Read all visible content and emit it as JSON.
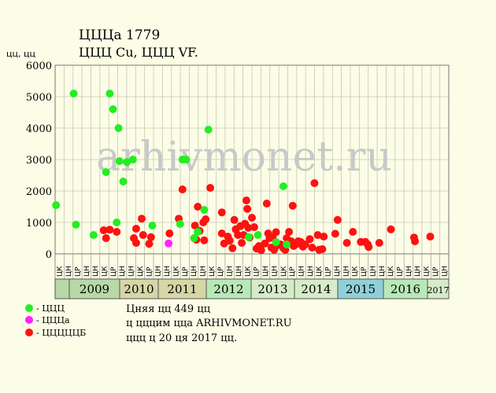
{
  "header": {
    "title": "ЦЦЦа 1779",
    "subtitle": "ЦЦЦ Cu, ЦЦЦ VF."
  },
  "watermark": "arhivmonet.ru",
  "footer": {
    "line1": "Цняя цц 449 цц",
    "line2": "ц цццим цца ARHIVMONET.RU",
    "line3": "ццц ц 20 ця 2017 цц."
  },
  "legend": [
    {
      "label": "- ЦЦЦ",
      "color": "#22ee22",
      "icon": "green-dot-icon"
    },
    {
      "label": "- ЦЦЦа",
      "color": "#ff22ff",
      "icon": "magenta-dot-icon"
    },
    {
      "label": "- ЦЦЦЦЦБ",
      "color": "#ff1111",
      "icon": "red-dot-icon"
    }
  ],
  "chart_data": {
    "type": "scatter",
    "title": "ЦЦЦа 1779",
    "subtitle": "ЦЦЦ Cu, ЦЦЦ VF.",
    "ylabel": "цц, цц",
    "ylim": [
      0,
      6000
    ],
    "yticks": [
      0,
      1000,
      2000,
      3000,
      4000,
      5000,
      6000
    ],
    "xlim": [
      2008.75,
      2017.25
    ],
    "grid": true,
    "legend_position": "bottom-left",
    "years": [
      "",
      "2009",
      "2010",
      "2011",
      "2012",
      "2013",
      "2014",
      "2015",
      "2016",
      "2017"
    ],
    "year_colors": [
      "#b8d8a8",
      "#b8d8a8",
      "#d6d6a6",
      "#d6d6a6",
      "#b8e8b8",
      "#d6ecc8",
      "#d6ecc8",
      "#8fd0d8",
      "#b8e8b8",
      "#d6ecc8"
    ],
    "months": [
      "ЦК",
      "ЦН",
      "ЦР",
      "ЦН",
      "ЦН",
      "ЦК",
      "ЦР",
      "ЦН",
      "ЦН",
      "ЦК",
      "ЦР",
      "ЦН",
      "ЦН",
      "ЦК",
      "ЦР",
      "ЦН",
      "ЦН",
      "ЦК",
      "ЦР",
      "ЦН",
      "ЦН",
      "ЦК",
      "ЦР",
      "ЦН",
      "ЦН",
      "ЦК",
      "ЦР",
      "ЦН",
      "ЦН",
      "ЦК",
      "ЦР",
      "ЦН",
      "ЦН",
      "ЦК",
      "ЦР",
      "ЦН",
      "ЦН",
      "ЦК",
      "ЦР",
      "ЦН",
      "ЦН",
      "ЦК",
      "ЦР",
      "ЦН"
    ],
    "series": [
      {
        "name": "ЦЦЦ",
        "color": "#22ee22",
        "points": [
          [
            2008.77,
            1550
          ],
          [
            2009.15,
            5100
          ],
          [
            2009.2,
            930
          ],
          [
            2009.58,
            600
          ],
          [
            2009.85,
            2600
          ],
          [
            2009.93,
            5100
          ],
          [
            2010.0,
            4600
          ],
          [
            2010.08,
            1000
          ],
          [
            2010.12,
            4000
          ],
          [
            2010.14,
            2950
          ],
          [
            2010.22,
            2300
          ],
          [
            2010.3,
            2920
          ],
          [
            2010.43,
            3000
          ],
          [
            2010.85,
            900
          ],
          [
            2011.45,
            950
          ],
          [
            2011.5,
            3000
          ],
          [
            2011.58,
            3000
          ],
          [
            2011.75,
            500
          ],
          [
            2011.83,
            700
          ],
          [
            2011.97,
            1400
          ],
          [
            2012.06,
            3950
          ],
          [
            2012.93,
            530
          ],
          [
            2013.13,
            600
          ],
          [
            2013.52,
            370
          ],
          [
            2013.68,
            2150
          ],
          [
            2013.75,
            300
          ]
        ]
      },
      {
        "name": "ЦЦЦа",
        "color": "#ff22ff",
        "points": [
          [
            2011.2,
            330
          ]
        ]
      },
      {
        "name": "ЦЦЦЦЦБ",
        "color": "#ff1111",
        "points": [
          [
            2009.8,
            750
          ],
          [
            2009.85,
            500
          ],
          [
            2009.93,
            770
          ],
          [
            2010.08,
            700
          ],
          [
            2010.45,
            500
          ],
          [
            2010.5,
            800
          ],
          [
            2010.5,
            350
          ],
          [
            2010.62,
            1120
          ],
          [
            2010.65,
            600
          ],
          [
            2010.78,
            320
          ],
          [
            2010.82,
            530
          ],
          [
            2011.22,
            650
          ],
          [
            2011.42,
            1120
          ],
          [
            2011.5,
            2050
          ],
          [
            2011.77,
            900
          ],
          [
            2011.8,
            450
          ],
          [
            2011.83,
            1500
          ],
          [
            2011.87,
            730
          ],
          [
            2011.95,
            1000
          ],
          [
            2011.97,
            430
          ],
          [
            2012.0,
            1100
          ],
          [
            2012.1,
            2100
          ],
          [
            2012.35,
            1320
          ],
          [
            2012.35,
            650
          ],
          [
            2012.4,
            330
          ],
          [
            2012.48,
            550
          ],
          [
            2012.52,
            420
          ],
          [
            2012.58,
            180
          ],
          [
            2012.62,
            1080
          ],
          [
            2012.65,
            780
          ],
          [
            2012.7,
            600
          ],
          [
            2012.75,
            880
          ],
          [
            2012.78,
            350
          ],
          [
            2012.82,
            600
          ],
          [
            2012.85,
            960
          ],
          [
            2012.88,
            1700
          ],
          [
            2012.9,
            1430
          ],
          [
            2012.92,
            830
          ],
          [
            2012.95,
            520
          ],
          [
            2013.0,
            1150
          ],
          [
            2013.05,
            850
          ],
          [
            2013.1,
            170
          ],
          [
            2013.15,
            250
          ],
          [
            2013.2,
            120
          ],
          [
            2013.28,
            330
          ],
          [
            2013.32,
            1600
          ],
          [
            2013.35,
            650
          ],
          [
            2013.38,
            500
          ],
          [
            2013.42,
            200
          ],
          [
            2013.45,
            520
          ],
          [
            2013.48,
            130
          ],
          [
            2013.52,
            690
          ],
          [
            2013.55,
            280
          ],
          [
            2013.62,
            300
          ],
          [
            2013.68,
            180
          ],
          [
            2013.72,
            130
          ],
          [
            2013.75,
            500
          ],
          [
            2013.8,
            700
          ],
          [
            2013.85,
            400
          ],
          [
            2013.88,
            1530
          ],
          [
            2013.9,
            250
          ],
          [
            2013.95,
            300
          ],
          [
            2014.0,
            400
          ],
          [
            2014.05,
            380
          ],
          [
            2014.1,
            230
          ],
          [
            2014.15,
            300
          ],
          [
            2014.25,
            470
          ],
          [
            2014.3,
            200
          ],
          [
            2014.35,
            2250
          ],
          [
            2014.42,
            600
          ],
          [
            2014.45,
            130
          ],
          [
            2014.52,
            150
          ],
          [
            2014.55,
            550
          ],
          [
            2014.8,
            640
          ],
          [
            2014.85,
            1080
          ],
          [
            2015.05,
            350
          ],
          [
            2015.18,
            700
          ],
          [
            2015.35,
            380
          ],
          [
            2015.45,
            380
          ],
          [
            2015.5,
            300
          ],
          [
            2015.52,
            220
          ],
          [
            2015.75,
            350
          ],
          [
            2016.0,
            780
          ],
          [
            2016.5,
            520
          ],
          [
            2016.52,
            400
          ],
          [
            2016.85,
            550
          ]
        ]
      }
    ]
  }
}
